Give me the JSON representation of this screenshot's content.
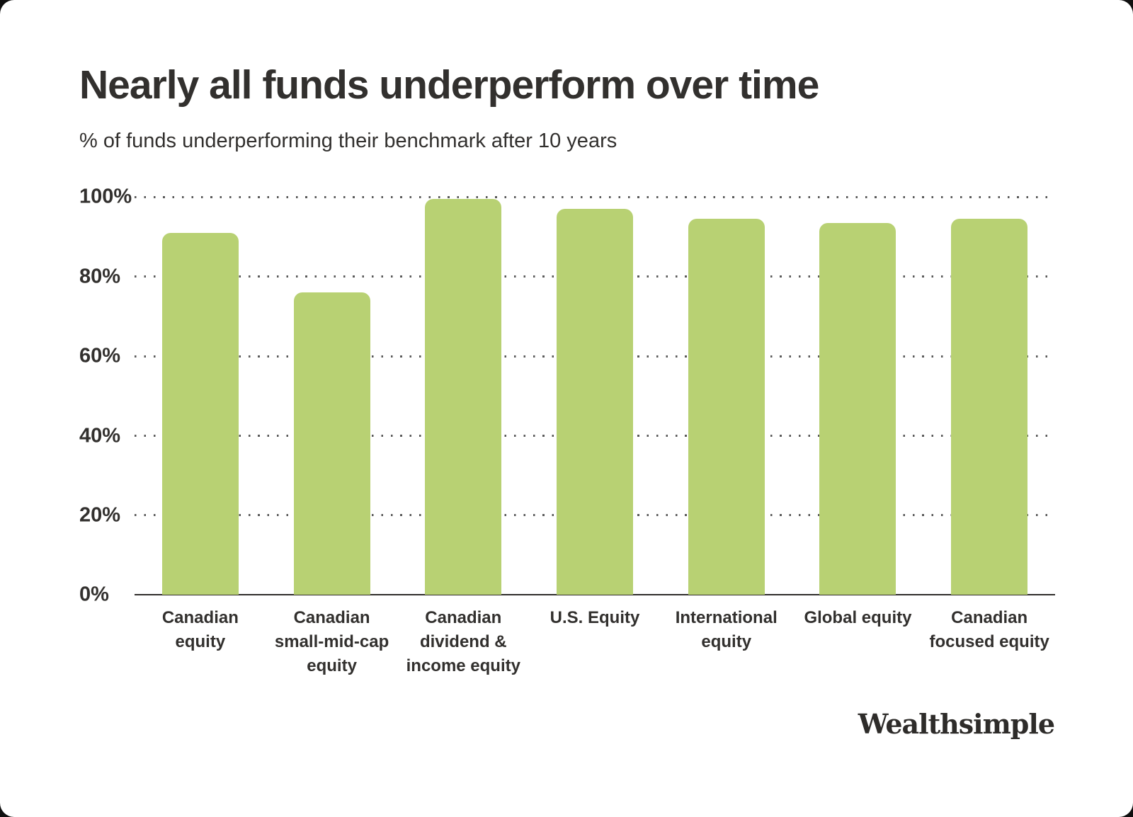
{
  "page": {
    "outer_background": "#101010",
    "card_background": "#ffffff"
  },
  "chart_data": {
    "type": "bar",
    "title": "Nearly all funds underperform over time",
    "subtitle": "% of funds underperforming their benchmark after 10 years",
    "categories": [
      "Canadian equity",
      "Canadian small-mid-cap equity",
      "Canadian dividend & income equity",
      "U.S. Equity",
      "International equity",
      "Global equity",
      "Canadian focused equity"
    ],
    "categories_display": [
      "Canadian\nequity",
      "Canadian\nsmall-mid-cap\nequity",
      "Canadian\ndividend &\nincome equity",
      "U.S. Equity",
      "International\nequity",
      "Global equity",
      "Canadian\nfocused equity"
    ],
    "values": [
      91,
      76,
      99.5,
      97,
      94.5,
      93.5,
      94.5
    ],
    "unit": "%",
    "ylim": [
      0,
      100
    ],
    "yticks": [
      100,
      80,
      60,
      40,
      20,
      0
    ],
    "ytick_labels": [
      "100%",
      "80%",
      "60%",
      "40%",
      "20%",
      "0%"
    ],
    "grid": "dotted-horizontal",
    "legend": "none",
    "bar_color": "#b8d173",
    "axis_color": "#2f2d2b",
    "grid_dot_color": "#5a5a5a",
    "text_color": "#32302e"
  },
  "branding": {
    "logo_text": "Wealthsimple"
  }
}
